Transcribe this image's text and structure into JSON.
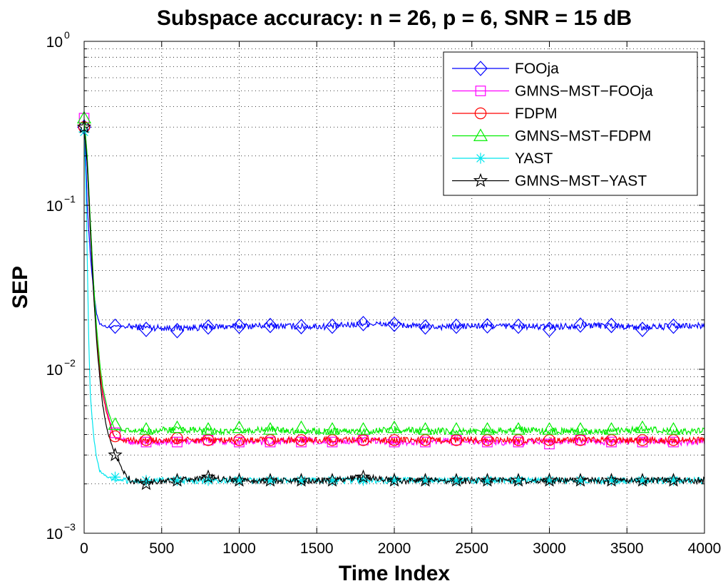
{
  "chart_data": {
    "type": "line",
    "title": "Subspace accuracy: n = 26, p = 6, SNR = 15 dB",
    "xlabel": "Time Index",
    "ylabel": "SEP",
    "xlim": [
      0,
      4000
    ],
    "ylim": [
      0.001,
      1
    ],
    "yscale": "log",
    "grid": true,
    "legend_position": "top-right",
    "x_ticks": [
      "0",
      "500",
      "1000",
      "1500",
      "2000",
      "2500",
      "3000",
      "3500",
      "4000"
    ],
    "y_ticks": [
      {
        "base": "10",
        "exp": "0",
        "value": 1
      },
      {
        "base": "10",
        "exp": "−1",
        "value": 0.1
      },
      {
        "base": "10",
        "exp": "−2",
        "value": 0.01
      },
      {
        "base": "10",
        "exp": "−3",
        "value": 0.001
      }
    ],
    "series": [
      {
        "name": "FOOja",
        "color": "#0000ff",
        "marker": "diamond",
        "x": [
          0,
          10,
          20,
          40,
          60,
          80,
          100,
          150,
          200,
          300,
          400,
          600,
          800,
          1000,
          1200,
          1400,
          1600,
          1800,
          2000,
          2200,
          2400,
          2600,
          2800,
          3000,
          3200,
          3400,
          3600,
          3800,
          4000
        ],
        "y": [
          0.3,
          0.2,
          0.1,
          0.05,
          0.03,
          0.022,
          0.019,
          0.018,
          0.0183,
          0.0182,
          0.018,
          0.0178,
          0.0181,
          0.0183,
          0.0185,
          0.0182,
          0.0183,
          0.019,
          0.0188,
          0.0181,
          0.0183,
          0.0184,
          0.0183,
          0.0181,
          0.0186,
          0.0185,
          0.018,
          0.0183,
          0.0184
        ],
        "marker_x": [
          0,
          200,
          400,
          600,
          800,
          1000,
          1200,
          1400,
          1600,
          1800,
          2000,
          2200,
          2400,
          2600,
          2800,
          3000,
          3200,
          3400,
          3600,
          3800
        ],
        "marker_y": [
          0.3,
          0.0183,
          0.0175,
          0.0172,
          0.0181,
          0.0183,
          0.0185,
          0.0182,
          0.0183,
          0.019,
          0.0188,
          0.0181,
          0.0183,
          0.0184,
          0.0183,
          0.0175,
          0.0186,
          0.0185,
          0.0175,
          0.0183
        ]
      },
      {
        "name": "GMNS−MST−FOOja",
        "color": "#ff00ff",
        "marker": "square",
        "x": [
          0,
          20,
          40,
          60,
          80,
          100,
          120,
          150,
          180,
          200,
          250,
          300,
          400,
          600,
          800,
          1000,
          1200,
          1400,
          1600,
          1800,
          2000,
          2200,
          2400,
          2600,
          2800,
          3000,
          3200,
          3400,
          3600,
          3800,
          4000
        ],
        "y": [
          0.34,
          0.2,
          0.08,
          0.035,
          0.018,
          0.011,
          0.0075,
          0.0055,
          0.0043,
          0.0038,
          0.0037,
          0.0036,
          0.0036,
          0.0036,
          0.0037,
          0.0036,
          0.0036,
          0.0037,
          0.0036,
          0.0037,
          0.0036,
          0.0036,
          0.0037,
          0.0036,
          0.0036,
          0.0036,
          0.0037,
          0.0036,
          0.0037,
          0.0036,
          0.0036
        ],
        "marker_x": [
          0,
          200,
          400,
          600,
          800,
          1000,
          1200,
          1400,
          1600,
          1800,
          2000,
          2200,
          2400,
          2600,
          2800,
          3000,
          3200,
          3400,
          3600,
          3800
        ],
        "marker_y": [
          0.34,
          0.0041,
          0.0036,
          0.0036,
          0.0037,
          0.0036,
          0.0036,
          0.0036,
          0.0036,
          0.0037,
          0.0036,
          0.0036,
          0.0037,
          0.0036,
          0.0036,
          0.0035,
          0.0037,
          0.0036,
          0.0036,
          0.0036
        ]
      },
      {
        "name": "FDPM",
        "color": "#ff0000",
        "marker": "circle",
        "x": [
          0,
          20,
          40,
          60,
          80,
          100,
          120,
          150,
          180,
          200,
          250,
          300,
          400,
          600,
          800,
          1000,
          1200,
          1400,
          1600,
          1800,
          2000,
          2200,
          2400,
          2600,
          2800,
          3000,
          3200,
          3400,
          3600,
          3800,
          4000
        ],
        "y": [
          0.3,
          0.18,
          0.07,
          0.03,
          0.016,
          0.01,
          0.007,
          0.0052,
          0.0042,
          0.0038,
          0.0037,
          0.0037,
          0.0037,
          0.0037,
          0.0037,
          0.0037,
          0.0037,
          0.0037,
          0.0037,
          0.0037,
          0.0037,
          0.0037,
          0.0037,
          0.0037,
          0.0037,
          0.0037,
          0.0037,
          0.0037,
          0.0037,
          0.0037,
          0.0037
        ],
        "marker_x": [
          0,
          200,
          400,
          600,
          800,
          1000,
          1200,
          1400,
          1600,
          1800,
          2000,
          2200,
          2400,
          2600,
          2800,
          3000,
          3200,
          3400,
          3600,
          3800
        ],
        "marker_y": [
          0.3,
          0.0039,
          0.0037,
          0.0038,
          0.0037,
          0.0037,
          0.0037,
          0.0037,
          0.0037,
          0.0037,
          0.0037,
          0.0037,
          0.0037,
          0.0037,
          0.0037,
          0.0037,
          0.0037,
          0.0037,
          0.0037,
          0.0037
        ]
      },
      {
        "name": "GMNS−MST−FDPM",
        "color": "#00ee00",
        "marker": "triangle",
        "x": [
          0,
          20,
          40,
          60,
          80,
          100,
          120,
          150,
          180,
          200,
          250,
          300,
          400,
          600,
          800,
          1000,
          1200,
          1400,
          1600,
          1800,
          2000,
          2200,
          2400,
          2600,
          2800,
          3000,
          3200,
          3400,
          3600,
          3800,
          4000
        ],
        "y": [
          0.34,
          0.2,
          0.08,
          0.035,
          0.018,
          0.011,
          0.0078,
          0.0058,
          0.0047,
          0.0043,
          0.0042,
          0.0042,
          0.0042,
          0.0043,
          0.0042,
          0.0042,
          0.0043,
          0.0042,
          0.0042,
          0.0042,
          0.0043,
          0.0042,
          0.0042,
          0.0042,
          0.0043,
          0.0042,
          0.0042,
          0.0042,
          0.0043,
          0.0042,
          0.0042
        ],
        "marker_x": [
          0,
          200,
          400,
          600,
          800,
          1000,
          1200,
          1400,
          1600,
          1800,
          2000,
          2200,
          2400,
          2600,
          2800,
          3000,
          3200,
          3400,
          3600,
          3800
        ],
        "marker_y": [
          0.34,
          0.0046,
          0.0043,
          0.0044,
          0.0043,
          0.0044,
          0.0043,
          0.0044,
          0.0043,
          0.0043,
          0.0044,
          0.0043,
          0.0043,
          0.0043,
          0.0043,
          0.0043,
          0.0043,
          0.0043,
          0.0044,
          0.0043
        ]
      },
      {
        "name": "YAST",
        "color": "#00e5ee",
        "marker": "asterisk",
        "x": [
          0,
          10,
          20,
          30,
          40,
          60,
          80,
          100,
          150,
          200,
          300,
          400,
          600,
          800,
          1000,
          1200,
          1400,
          1600,
          1800,
          2000,
          2200,
          2400,
          2600,
          2800,
          3000,
          3200,
          3400,
          3600,
          3800,
          4000
        ],
        "y": [
          0.28,
          0.15,
          0.05,
          0.015,
          0.007,
          0.004,
          0.0029,
          0.0024,
          0.0022,
          0.0021,
          0.0021,
          0.0021,
          0.0021,
          0.0021,
          0.0021,
          0.0021,
          0.0021,
          0.0021,
          0.0021,
          0.0021,
          0.0021,
          0.0021,
          0.0021,
          0.0021,
          0.0021,
          0.0021,
          0.0021,
          0.0021,
          0.0021,
          0.0021
        ],
        "marker_x": [
          0,
          200,
          400,
          600,
          800,
          1000,
          1200,
          1400,
          1600,
          1800,
          2000,
          2200,
          2400,
          2600,
          2800,
          3000,
          3200,
          3400,
          3600,
          3800
        ],
        "marker_y": [
          0.28,
          0.0022,
          0.0021,
          0.0021,
          0.0021,
          0.0021,
          0.0021,
          0.0021,
          0.0021,
          0.0021,
          0.0021,
          0.0021,
          0.0021,
          0.0021,
          0.0021,
          0.0021,
          0.0021,
          0.0021,
          0.0021,
          0.0021
        ]
      },
      {
        "name": "GMNS−MST−YAST",
        "color": "#000000",
        "marker": "star",
        "x": [
          0,
          20,
          40,
          60,
          80,
          100,
          120,
          150,
          200,
          250,
          300,
          400,
          600,
          800,
          1000,
          1200,
          1400,
          1600,
          1800,
          2000,
          2200,
          2400,
          2600,
          2800,
          3000,
          3200,
          3400,
          3600,
          3800,
          4000
        ],
        "y": [
          0.3,
          0.18,
          0.07,
          0.03,
          0.015,
          0.009,
          0.006,
          0.0042,
          0.003,
          0.0024,
          0.0021,
          0.00205,
          0.0021,
          0.0022,
          0.0021,
          0.0021,
          0.0021,
          0.0021,
          0.0022,
          0.0021,
          0.0021,
          0.0021,
          0.0021,
          0.0021,
          0.0021,
          0.0021,
          0.0021,
          0.0021,
          0.0021,
          0.0021
        ],
        "marker_x": [
          0,
          200,
          400,
          600,
          800,
          1000,
          1200,
          1400,
          1600,
          1800,
          2000,
          2200,
          2400,
          2600,
          2800,
          3000,
          3200,
          3400,
          3600,
          3800
        ],
        "marker_y": [
          0.3,
          0.003,
          0.002,
          0.0021,
          0.0022,
          0.0021,
          0.0021,
          0.0021,
          0.0021,
          0.0022,
          0.0021,
          0.0021,
          0.0021,
          0.0021,
          0.0021,
          0.0021,
          0.0021,
          0.0021,
          0.0021,
          0.0021
        ]
      }
    ]
  }
}
